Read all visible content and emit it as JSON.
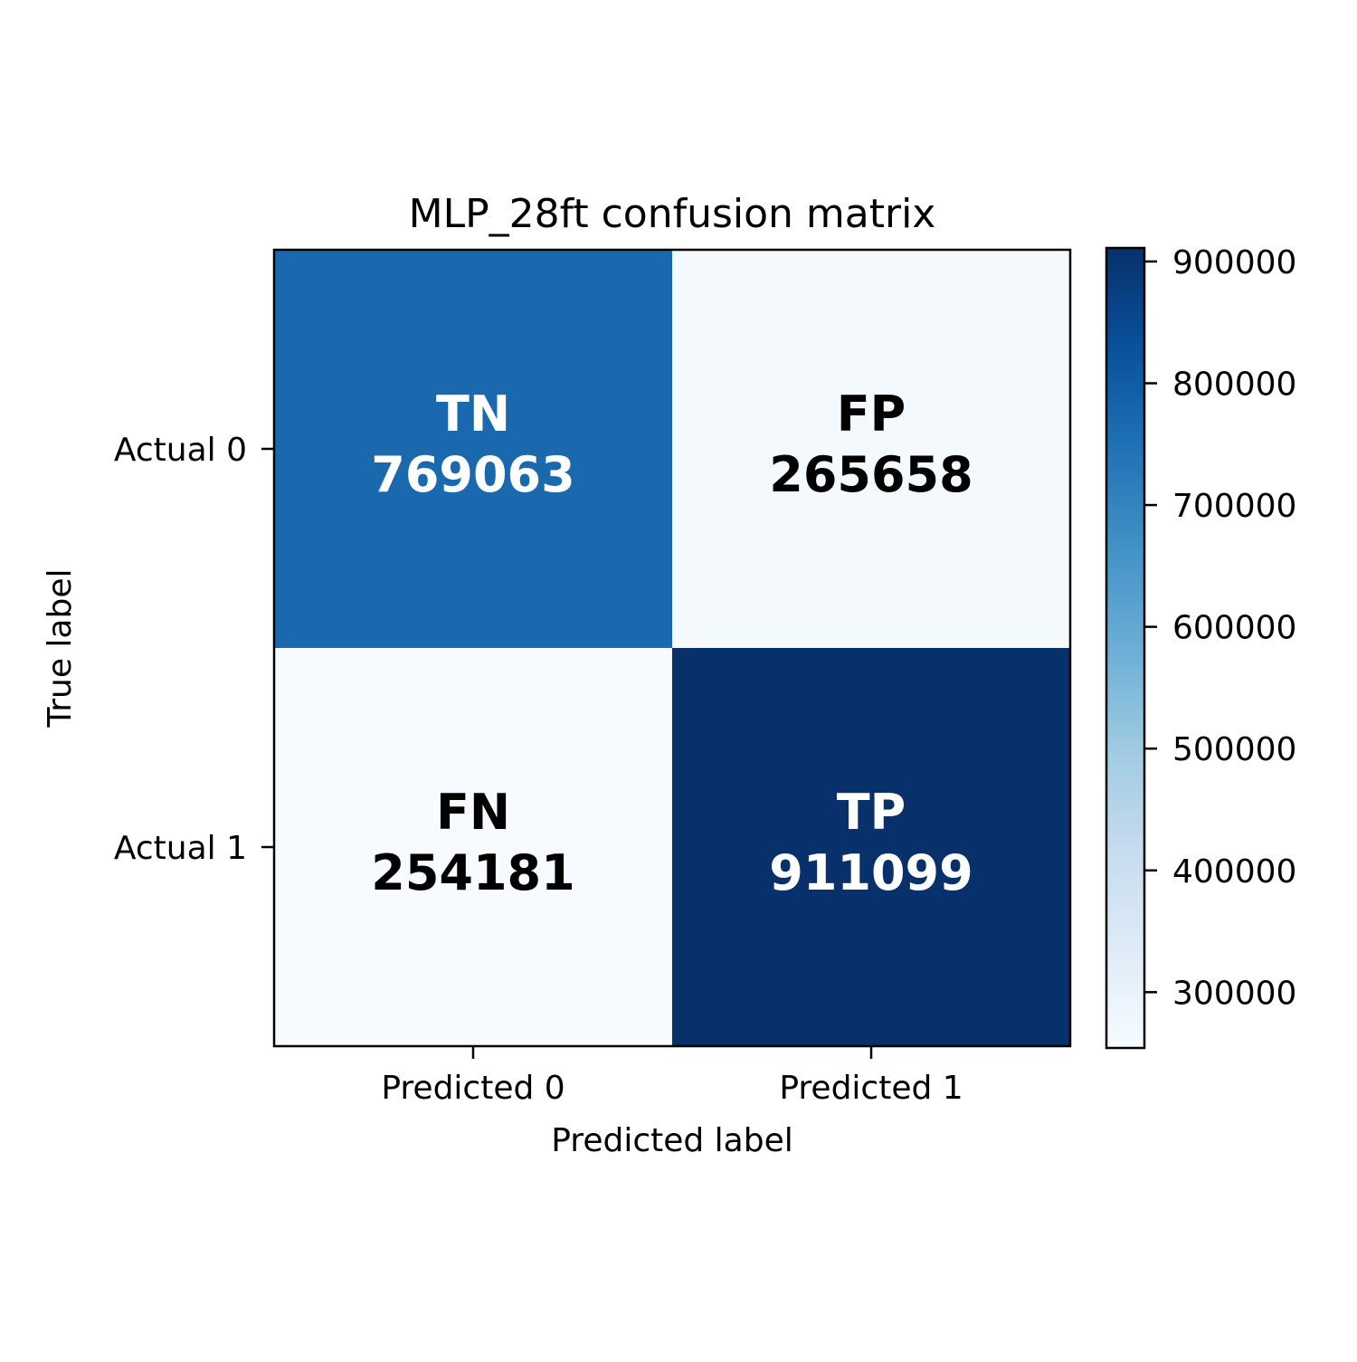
{
  "chart_data": {
    "type": "heatmap",
    "title": "MLP_28ft confusion matrix",
    "xlabel": "Predicted label",
    "ylabel": "True label",
    "x_categories": [
      "Predicted 0",
      "Predicted 1"
    ],
    "y_categories": [
      "Actual 0",
      "Actual 1"
    ],
    "values": [
      [
        769063,
        265658
      ],
      [
        254181,
        911099
      ]
    ],
    "cell_labels": [
      [
        "TN",
        "FP"
      ],
      [
        "FN",
        "TP"
      ]
    ],
    "colormap": "Blues",
    "colorbar": {
      "range": [
        254181,
        911099
      ],
      "ticks": [
        300000,
        400000,
        500000,
        600000,
        700000,
        800000,
        900000
      ]
    },
    "grid": false
  }
}
